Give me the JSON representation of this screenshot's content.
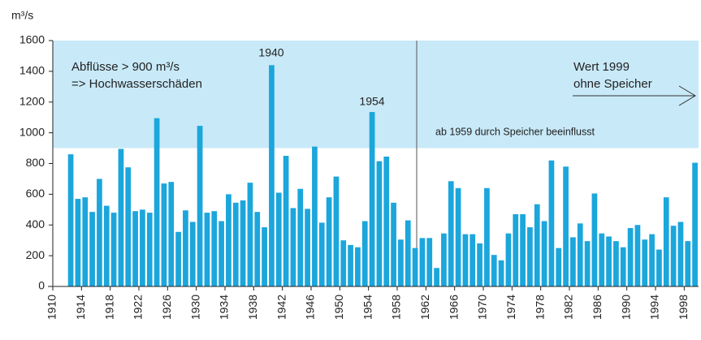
{
  "chart_data": {
    "type": "bar",
    "y_unit": "m³/s",
    "x": [
      1912,
      1913,
      1914,
      1915,
      1916,
      1917,
      1918,
      1919,
      1920,
      1921,
      1922,
      1923,
      1924,
      1925,
      1926,
      1927,
      1928,
      1929,
      1930,
      1931,
      1932,
      1933,
      1934,
      1935,
      1936,
      1937,
      1938,
      1939,
      1940,
      1941,
      1942,
      1943,
      1944,
      1945,
      1946,
      1947,
      1948,
      1949,
      1950,
      1951,
      1952,
      1953,
      1954,
      1955,
      1956,
      1957,
      1958,
      1959,
      1960,
      1961,
      1962,
      1963,
      1964,
      1965,
      1966,
      1967,
      1968,
      1969,
      1970,
      1971,
      1972,
      1973,
      1974,
      1975,
      1976,
      1977,
      1978,
      1979,
      1980,
      1981,
      1982,
      1983,
      1984,
      1985,
      1986,
      1987,
      1988,
      1989,
      1990,
      1991,
      1992,
      1993,
      1994,
      1995,
      1996,
      1997,
      1998,
      1999
    ],
    "values": [
      860,
      570,
      580,
      485,
      700,
      525,
      480,
      895,
      775,
      490,
      500,
      480,
      1095,
      670,
      680,
      355,
      495,
      420,
      1045,
      480,
      490,
      425,
      600,
      545,
      560,
      675,
      485,
      385,
      1440,
      610,
      850,
      510,
      635,
      505,
      910,
      415,
      580,
      715,
      300,
      270,
      255,
      425,
      1135,
      815,
      845,
      545,
      305,
      430,
      250,
      315,
      315,
      120,
      345,
      685,
      640,
      340,
      340,
      280,
      640,
      205,
      170,
      345,
      470,
      470,
      385,
      535,
      425,
      820,
      250,
      780,
      320,
      410,
      295,
      605,
      345,
      325,
      295,
      255,
      380,
      400,
      305,
      340,
      240,
      580,
      395,
      420,
      295,
      805
    ],
    "color": "#1ba6dc",
    "threshold": 900,
    "band_color": "#c8e9f8",
    "xlim": [
      1910,
      2000
    ],
    "xticks": [
      1910,
      1914,
      1918,
      1922,
      1926,
      1930,
      1934,
      1938,
      1942,
      1946,
      1950,
      1954,
      1958,
      1962,
      1966,
      1970,
      1974,
      1978,
      1982,
      1986,
      1990,
      1994,
      1998
    ],
    "ylim": [
      0,
      1600
    ],
    "yticks": [
      0,
      200,
      400,
      600,
      800,
      1000,
      1200,
      1400,
      1600
    ],
    "annotations": {
      "flood_line1": "Abflüsse > 900 m³/s",
      "flood_line2": "=> Hochwasserschäden",
      "peak_1940": "1940",
      "peak_1954": "1954",
      "storage": "ab 1959 durch Speicher beeinflusst",
      "note_line1": "Wert 1999",
      "note_line2": "ohne Speicher"
    }
  }
}
